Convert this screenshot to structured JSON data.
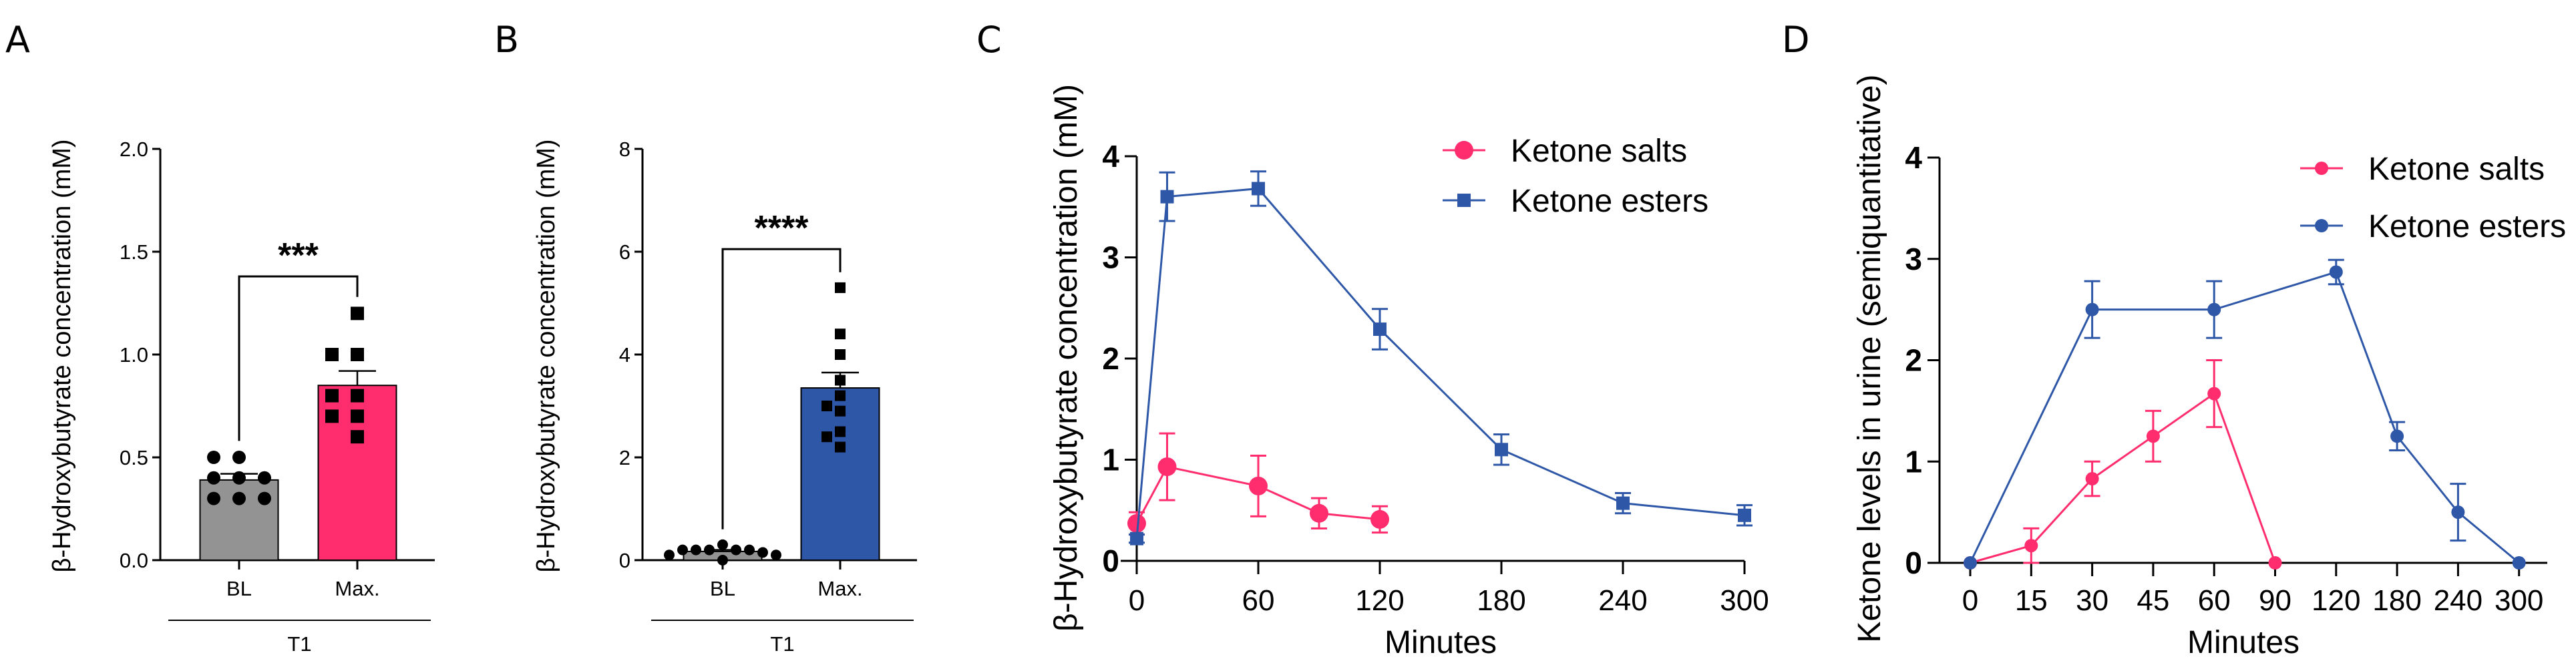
{
  "colors": {
    "gray": "#939393",
    "pink": "#FF2D6E",
    "blue": "#2E57A8",
    "black": "#000000"
  },
  "chart_data": [
    {
      "panel": "A",
      "type": "bar",
      "ylabel": "β-Hydroxybutyrate concentration (mM)",
      "ylim": [
        0,
        2
      ],
      "yticks": [
        {
          "v": 0,
          "label": "0.0"
        },
        {
          "v": 0.5,
          "label": "0.5"
        },
        {
          "v": 1,
          "label": "1.0"
        },
        {
          "v": 1.5,
          "label": "1.5"
        },
        {
          "v": 2,
          "label": "2.0"
        }
      ],
      "categories": [
        "BL",
        "Max."
      ],
      "group_label": "T1",
      "means": [
        0.39,
        0.85
      ],
      "sem": [
        0.03,
        0.07
      ],
      "bar_colors": [
        "#939393",
        "#FF2D6E"
      ],
      "markers": [
        "circle",
        "square"
      ],
      "points": [
        [
          0.5,
          0.5,
          0.4,
          0.4,
          0.4,
          0.3,
          0.3,
          0.3
        ],
        [
          1.2,
          1.0,
          1.0,
          0.8,
          0.8,
          0.7,
          0.7,
          0.6
        ]
      ],
      "significance": {
        "label": "***",
        "bracket_top": 1.38,
        "left_end": 0.58,
        "right_end": 1.28
      }
    },
    {
      "panel": "B",
      "type": "bar",
      "ylabel": "β-Hydroxybutyrate concentration (mM)",
      "ylim": [
        0,
        8
      ],
      "yticks": [
        {
          "v": 0,
          "label": "0"
        },
        {
          "v": 2,
          "label": "2"
        },
        {
          "v": 4,
          "label": "4"
        },
        {
          "v": 6,
          "label": "6"
        },
        {
          "v": 8,
          "label": "8"
        }
      ],
      "categories": [
        "BL",
        "Max."
      ],
      "group_label": "T1",
      "means": [
        0.17,
        3.35
      ],
      "sem": [
        0.03,
        0.3
      ],
      "bar_colors": [
        "#939393",
        "#2E57A8"
      ],
      "markers": [
        "circle",
        "square"
      ],
      "points": [
        [
          0.3,
          0.2,
          0.2,
          0.2,
          0.2,
          0.2,
          0.15,
          0.1,
          0.1,
          0.0
        ],
        [
          5.3,
          4.4,
          4.0,
          3.5,
          3.2,
          3.0,
          2.9,
          2.5,
          2.4,
          2.2
        ]
      ],
      "significance": {
        "label": "****",
        "bracket_top": 6.05,
        "left_end": 0.6,
        "right_end": 5.6
      }
    },
    {
      "panel": "C",
      "type": "line",
      "ylabel": "β-Hydroxybutyrate concentration (mM)",
      "xlabel": "Minutes",
      "xlim": [
        0,
        300
      ],
      "xticks": [
        0,
        60,
        120,
        180,
        240,
        300
      ],
      "ylim": [
        0,
        4
      ],
      "yticks": [
        0,
        1,
        2,
        3,
        4
      ],
      "legend": "top-right",
      "series": [
        {
          "name": "Ketone salts",
          "color": "#FF2D6E",
          "marker": "circle",
          "x": [
            0,
            15,
            60,
            90,
            120
          ],
          "y": [
            0.37,
            0.93,
            0.74,
            0.47,
            0.41
          ],
          "err": [
            0.11,
            0.33,
            0.3,
            0.15,
            0.13
          ]
        },
        {
          "name": "Ketone esters",
          "color": "#2E57A8",
          "marker": "square",
          "x": [
            0,
            15,
            60,
            120,
            180,
            240,
            300
          ],
          "y": [
            0.22,
            3.6,
            3.68,
            2.29,
            1.1,
            0.57,
            0.45
          ],
          "err": [
            0.04,
            0.24,
            0.17,
            0.2,
            0.15,
            0.1,
            0.1
          ]
        }
      ]
    },
    {
      "panel": "D",
      "type": "line",
      "ylabel": "Ketone levels in urine (semiquantitative)",
      "xlabel": "Minutes",
      "categories": [
        "0",
        "15",
        "30",
        "45",
        "60",
        "90",
        "120",
        "180",
        "240",
        "300"
      ],
      "ylim": [
        0,
        4
      ],
      "yticks": [
        0,
        1,
        2,
        3,
        4
      ],
      "legend": "top-right",
      "series": [
        {
          "name": "Ketone salts",
          "color": "#FF2D6E",
          "marker": "circle",
          "x": [
            "0",
            "15",
            "30",
            "45",
            "60",
            "90"
          ],
          "y": [
            0,
            0.17,
            0.83,
            1.25,
            1.67,
            0
          ],
          "err": [
            0,
            0.17,
            0.17,
            0.25,
            0.33,
            0
          ]
        },
        {
          "name": "Ketone esters",
          "color": "#2E57A8",
          "marker": "circle",
          "x": [
            "0",
            "30",
            "60",
            "120",
            "180",
            "240",
            "300"
          ],
          "y": [
            0,
            2.5,
            2.5,
            2.87,
            1.25,
            0.5,
            0
          ],
          "err": [
            0,
            0.28,
            0.28,
            0.12,
            0.14,
            0.28,
            0
          ]
        }
      ]
    }
  ]
}
